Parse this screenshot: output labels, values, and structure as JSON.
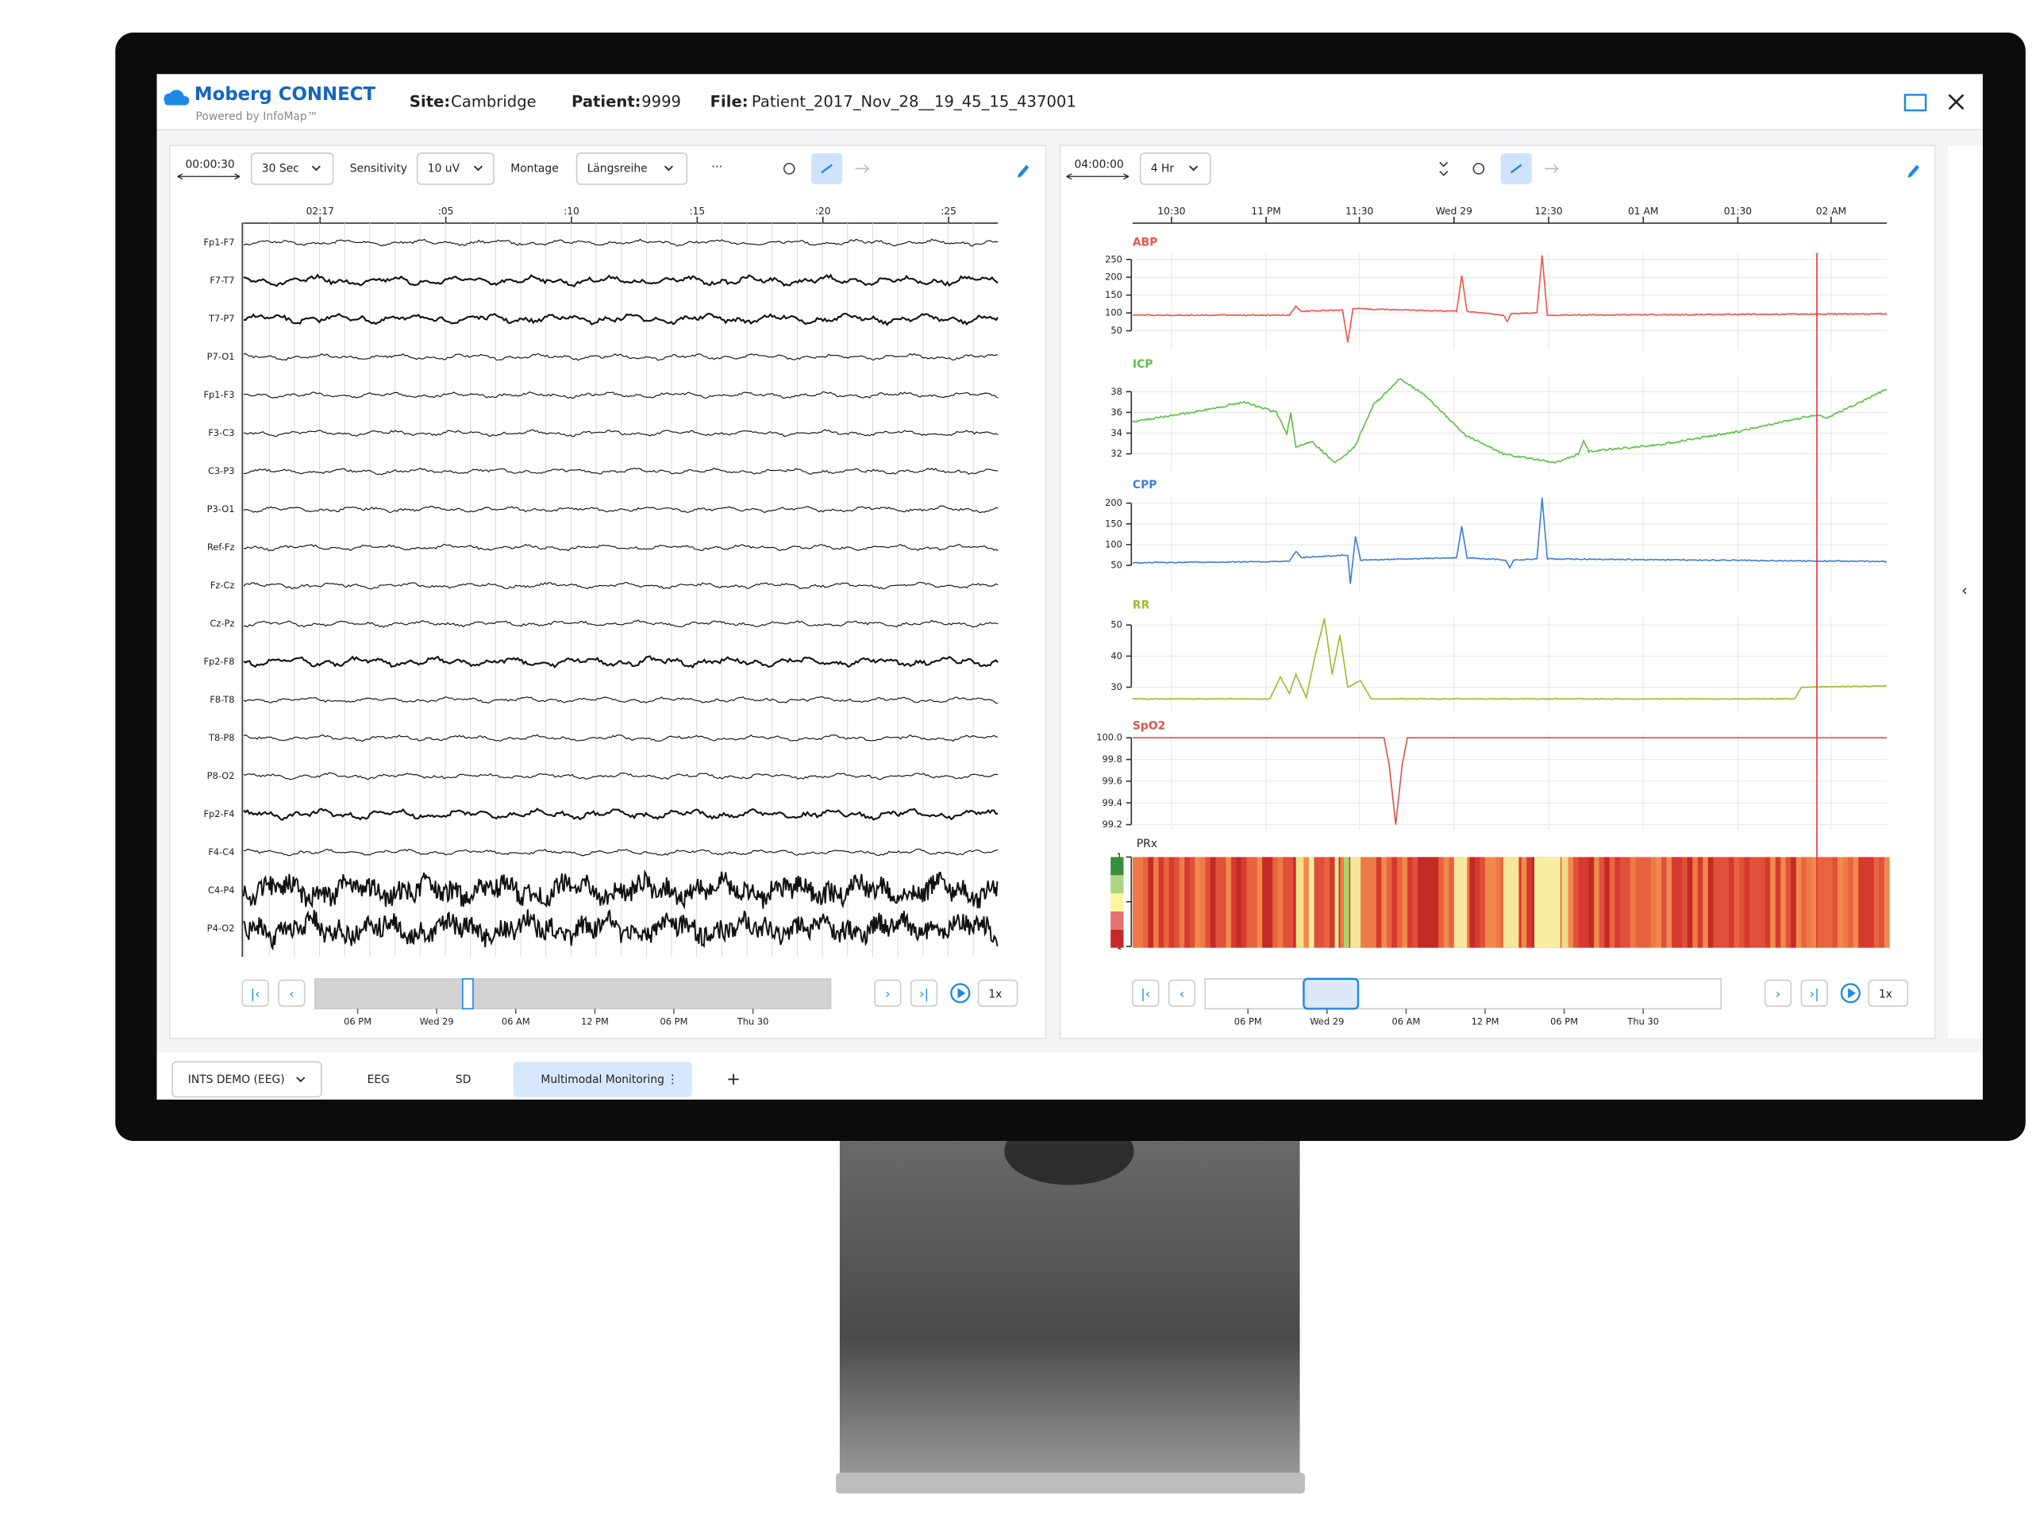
{
  "header": {
    "brand": "Moberg CONNECT",
    "tagline": "Powered by InfoMap™",
    "site_label": "Site:",
    "site": "Cambridge",
    "patient_label": "Patient:",
    "patient": "9999",
    "file_label": "File:",
    "file": "Patient_2017_Nov_28__19_45_15_437001"
  },
  "eeg_panel": {
    "window": "00:00:30",
    "duration": "30 Sec",
    "sensitivity_label": "Sensitivity",
    "sensitivity": "10 uV",
    "montage_label": "Montage",
    "montage": "Längsreihe",
    "more": "···",
    "time_ticks": [
      "02:17",
      ":05",
      ":10",
      ":15",
      ":20",
      ":25"
    ],
    "channels": [
      "Fp1-F7",
      "F7-T7",
      "T7-P7",
      "P7-O1",
      "Fp1-F3",
      "F3-C3",
      "C3-P3",
      "P3-O1",
      "Ref-Fz",
      "Fz-Cz",
      "Cz-Pz",
      "Fp2-F8",
      "F8-T8",
      "T8-P8",
      "P8-O2",
      "Fp2-F4",
      "F4-C4",
      "C4-P4",
      "P4-O2"
    ],
    "nav_ticks": [
      "06 PM",
      "Wed 29",
      "06 AM",
      "12 PM",
      "06 PM",
      "Thu 30"
    ],
    "speed": "1x"
  },
  "trend_panel": {
    "window": "04:00:00",
    "duration": "4 Hr",
    "time_ticks": [
      "10:30",
      "11 PM",
      "11:30",
      "Wed 29",
      "12:30",
      "01 AM",
      "01:30",
      "02 AM"
    ],
    "tracks": [
      {
        "name": "ABP",
        "color": "#e8574c",
        "ticks": [
          "250",
          "200",
          "150",
          "100",
          "50"
        ]
      },
      {
        "name": "ICP",
        "color": "#5fbf45",
        "ticks": [
          "38",
          "36",
          "34",
          "32"
        ]
      },
      {
        "name": "CPP",
        "color": "#3f7fd6",
        "ticks": [
          "200",
          "150",
          "100",
          "50"
        ]
      },
      {
        "name": "RR",
        "color": "#9dbb2e",
        "ticks": [
          "50",
          "40",
          "30"
        ]
      },
      {
        "name": "SpO2",
        "color": "#d9534f",
        "ticks": [
          "100.0",
          "99.8",
          "99.6",
          "99.4",
          "99.2"
        ]
      },
      {
        "name": "PRx",
        "color": "#222222",
        "ticks": [
          "-1",
          "0",
          "1"
        ]
      }
    ],
    "nav_ticks": [
      "06 PM",
      "Wed 29",
      "06 AM",
      "12 PM",
      "06 PM",
      "Thu 30"
    ],
    "speed": "1x"
  },
  "tabs": [
    "INTS DEMO (EEG)",
    "EEG",
    "SD",
    "Multimodal Monitoring"
  ],
  "add_tab": "+"
}
